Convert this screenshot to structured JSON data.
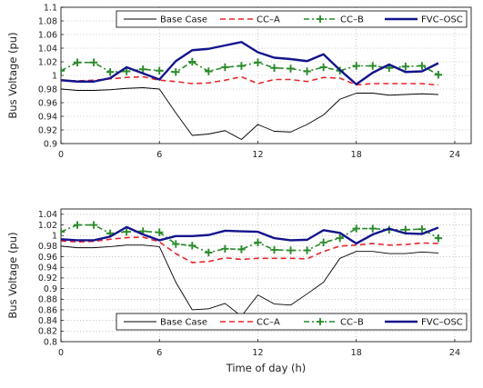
{
  "chart_data": [
    {
      "type": "line",
      "xlabel": "",
      "ylabel": "Bus Voltage (pu)",
      "xlim": [
        0,
        25
      ],
      "ylim": [
        0.9,
        1.1
      ],
      "xticks": [
        0,
        6,
        12,
        18,
        24
      ],
      "yticks": [
        0.9,
        0.92,
        0.94,
        0.96,
        0.98,
        1,
        1.02,
        1.04,
        1.06,
        1.08,
        1.1
      ],
      "ytick_labels": [
        "0.9",
        "0.92",
        "0.94",
        "0.96",
        "0.98",
        "1",
        "1.02",
        "1.04",
        "1.06",
        "1.08",
        "1.1"
      ],
      "grid": true,
      "legend_position": "top",
      "x": [
        0,
        1,
        2,
        3,
        4,
        5,
        6,
        7,
        8,
        9,
        10,
        11,
        12,
        13,
        14,
        15,
        16,
        17,
        18,
        19,
        20,
        21,
        22,
        23
      ],
      "series": [
        {
          "name": "Base Case",
          "color": "#000000",
          "style": "solid",
          "values": [
            0.98,
            0.978,
            0.978,
            0.979,
            0.981,
            0.982,
            0.98,
            0.945,
            0.912,
            0.914,
            0.919,
            0.906,
            0.928,
            0.918,
            0.917,
            0.928,
            0.942,
            0.965,
            0.974,
            0.974,
            0.971,
            0.972,
            0.973,
            0.972
          ]
        },
        {
          "name": "CC–A",
          "color": "#e8242a",
          "style": "dashed",
          "values": [
            0.993,
            0.992,
            0.993,
            0.995,
            0.997,
            0.998,
            0.993,
            0.991,
            0.988,
            0.989,
            0.993,
            0.998,
            0.988,
            0.994,
            0.994,
            0.991,
            0.997,
            0.996,
            0.986,
            0.988,
            0.988,
            0.988,
            0.988,
            0.986
          ]
        },
        {
          "name": "CC–B",
          "color": "#2a8a2a",
          "style": "dashdot-plus",
          "values": [
            1.007,
            1.019,
            1.019,
            1.005,
            1.006,
            1.009,
            1.007,
            1.005,
            1.02,
            1.006,
            1.012,
            1.014,
            1.019,
            1.011,
            1.01,
            1.006,
            1.012,
            1.007,
            1.014,
            1.014,
            1.011,
            1.013,
            1.014,
            1.001
          ]
        },
        {
          "name": "FVC–OSC",
          "color": "#14148c",
          "style": "solid-thick",
          "values": [
            0.993,
            0.991,
            0.991,
            0.996,
            1.012,
            1.003,
            0.994,
            1.021,
            1.037,
            1.039,
            1.044,
            1.049,
            1.034,
            1.026,
            1.024,
            1.021,
            1.031,
            1.008,
            0.987,
            1.004,
            1.016,
            1.005,
            1.006,
            1.018
          ]
        }
      ]
    },
    {
      "type": "line",
      "xlabel": "Time of day (h)",
      "ylabel": "Bus Voltage (pu)",
      "xlim": [
        0,
        25
      ],
      "ylim": [
        0.8,
        1.05
      ],
      "xticks": [
        0,
        6,
        12,
        18,
        24
      ],
      "yticks": [
        0.8,
        0.82,
        0.84,
        0.86,
        0.88,
        0.9,
        0.92,
        0.94,
        0.96,
        0.98,
        1,
        1.02,
        1.04
      ],
      "ytick_labels": [
        "0.8",
        "0.82",
        "0.84",
        "0.86",
        "0.88",
        "0.9",
        "0.92",
        "0.94",
        "0.96",
        "0.98",
        "1",
        "1.02",
        "1.04"
      ],
      "grid": true,
      "legend_position": "bottom",
      "x": [
        0,
        1,
        2,
        3,
        4,
        5,
        6,
        7,
        8,
        9,
        10,
        11,
        12,
        13,
        14,
        15,
        16,
        17,
        18,
        19,
        20,
        21,
        22,
        23
      ],
      "series": [
        {
          "name": "Base Case",
          "color": "#000000",
          "style": "solid",
          "values": [
            0.98,
            0.977,
            0.977,
            0.979,
            0.982,
            0.982,
            0.979,
            0.912,
            0.86,
            0.862,
            0.872,
            0.848,
            0.888,
            0.871,
            0.869,
            0.89,
            0.912,
            0.957,
            0.97,
            0.97,
            0.966,
            0.966,
            0.969,
            0.967
          ]
        },
        {
          "name": "CC–A",
          "color": "#e8242a",
          "style": "dashed",
          "values": [
            0.99,
            0.988,
            0.989,
            0.993,
            0.996,
            0.997,
            0.988,
            0.966,
            0.949,
            0.951,
            0.958,
            0.955,
            0.957,
            0.957,
            0.957,
            0.956,
            0.97,
            0.98,
            0.982,
            0.985,
            0.982,
            0.983,
            0.986,
            0.985
          ]
        },
        {
          "name": "CC–B",
          "color": "#2a8a2a",
          "style": "dashdot-plus",
          "values": [
            1.007,
            1.02,
            1.02,
            1.004,
            1.007,
            1.008,
            1.006,
            0.984,
            0.981,
            0.968,
            0.975,
            0.974,
            0.987,
            0.973,
            0.972,
            0.972,
            0.987,
            0.995,
            1.013,
            1.013,
            1.011,
            1.011,
            1.012,
            0.995
          ]
        },
        {
          "name": "FVC–OSC",
          "color": "#14148c",
          "style": "solid-thick",
          "values": [
            0.993,
            0.991,
            0.991,
            0.998,
            1.016,
            1.002,
            0.991,
            0.999,
            0.999,
            1.001,
            1.009,
            1.008,
            1.007,
            0.995,
            0.991,
            0.992,
            1.01,
            1.005,
            0.985,
            1.002,
            1.013,
            1.004,
            1.003,
            1.015
          ]
        }
      ]
    }
  ]
}
